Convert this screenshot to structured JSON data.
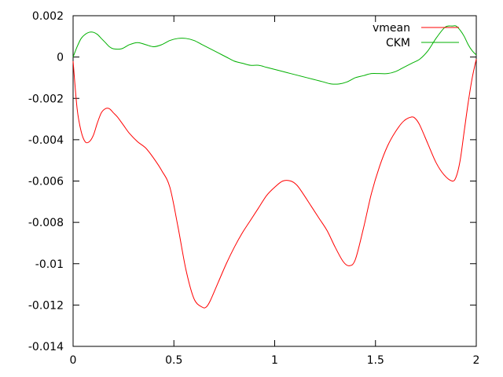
{
  "chart_data": {
    "type": "line",
    "title": "",
    "xlabel": "",
    "ylabel": "",
    "xlim": [
      0,
      2
    ],
    "ylim": [
      -0.014,
      0.002
    ],
    "grid": false,
    "legend_position": "top-right",
    "x_ticks": [
      {
        "value": 0,
        "label": "0"
      },
      {
        "value": 0.5,
        "label": "0.5"
      },
      {
        "value": 1,
        "label": "1"
      },
      {
        "value": 1.5,
        "label": "1.5"
      },
      {
        "value": 2,
        "label": "2"
      }
    ],
    "y_ticks": [
      {
        "value": 0.002,
        "label": "0.002"
      },
      {
        "value": 0,
        "label": "0"
      },
      {
        "value": -0.002,
        "label": "-0.002"
      },
      {
        "value": -0.004,
        "label": "-0.004"
      },
      {
        "value": -0.006,
        "label": "-0.006"
      },
      {
        "value": -0.008,
        "label": "-0.008"
      },
      {
        "value": -0.01,
        "label": "-0.01"
      },
      {
        "value": -0.012,
        "label": "-0.012"
      },
      {
        "value": -0.014,
        "label": "-0.014"
      }
    ],
    "series": [
      {
        "name": "vmean",
        "color": "#ff0000",
        "x": [
          0,
          0.02,
          0.04,
          0.06,
          0.08,
          0.1,
          0.12,
          0.14,
          0.16,
          0.18,
          0.2,
          0.22,
          0.25,
          0.28,
          0.32,
          0.36,
          0.4,
          0.44,
          0.48,
          0.52,
          0.56,
          0.6,
          0.64,
          0.66,
          0.68,
          0.72,
          0.76,
          0.8,
          0.84,
          0.88,
          0.92,
          0.96,
          1.0,
          1.04,
          1.08,
          1.11,
          1.14,
          1.18,
          1.22,
          1.26,
          1.3,
          1.34,
          1.37,
          1.4,
          1.44,
          1.48,
          1.52,
          1.56,
          1.6,
          1.64,
          1.68,
          1.7,
          1.72,
          1.76,
          1.8,
          1.84,
          1.88,
          1.9,
          1.92,
          1.94,
          1.96,
          1.98,
          2.0
        ],
        "values": [
          -0.0002,
          -0.0025,
          -0.0036,
          -0.0041,
          -0.0041,
          -0.0038,
          -0.0032,
          -0.0027,
          -0.0025,
          -0.0025,
          -0.0027,
          -0.0029,
          -0.0033,
          -0.0037,
          -0.0041,
          -0.0044,
          -0.0049,
          -0.0055,
          -0.0063,
          -0.0082,
          -0.0103,
          -0.0117,
          -0.0121,
          -0.0121,
          -0.0118,
          -0.0109,
          -0.01,
          -0.0092,
          -0.0085,
          -0.0079,
          -0.0073,
          -0.0067,
          -0.0063,
          -0.006,
          -0.006,
          -0.0062,
          -0.0066,
          -0.0072,
          -0.0078,
          -0.0084,
          -0.0092,
          -0.0099,
          -0.0101,
          -0.0098,
          -0.0083,
          -0.0066,
          -0.0053,
          -0.0043,
          -0.0036,
          -0.0031,
          -0.0029,
          -0.003,
          -0.0033,
          -0.0042,
          -0.0051,
          -0.0057,
          -0.006,
          -0.0058,
          -0.005,
          -0.0036,
          -0.0022,
          -0.001,
          -0.0001
        ]
      },
      {
        "name": "CKM",
        "color": "#00b000",
        "x": [
          0,
          0.02,
          0.04,
          0.06,
          0.08,
          0.1,
          0.12,
          0.14,
          0.16,
          0.18,
          0.2,
          0.24,
          0.28,
          0.32,
          0.36,
          0.4,
          0.44,
          0.48,
          0.52,
          0.56,
          0.6,
          0.64,
          0.68,
          0.72,
          0.76,
          0.8,
          0.84,
          0.88,
          0.92,
          0.96,
          1.0,
          1.04,
          1.08,
          1.12,
          1.16,
          1.2,
          1.24,
          1.28,
          1.32,
          1.36,
          1.4,
          1.44,
          1.48,
          1.52,
          1.56,
          1.6,
          1.64,
          1.68,
          1.72,
          1.76,
          1.8,
          1.84,
          1.86,
          1.88,
          1.9,
          1.92,
          1.94,
          1.96,
          1.98,
          2.0
        ],
        "values": [
          0.0,
          0.0005,
          0.0009,
          0.0011,
          0.0012,
          0.0012,
          0.0011,
          0.0009,
          0.0007,
          0.0005,
          0.0004,
          0.0004,
          0.0006,
          0.0007,
          0.0006,
          0.0005,
          0.0006,
          0.0008,
          0.0009,
          0.0009,
          0.0008,
          0.0006,
          0.0004,
          0.0002,
          0.0,
          -0.0002,
          -0.0003,
          -0.0004,
          -0.0004,
          -0.0005,
          -0.0006,
          -0.0007,
          -0.0008,
          -0.0009,
          -0.001,
          -0.0011,
          -0.0012,
          -0.0013,
          -0.0013,
          -0.0012,
          -0.001,
          -0.0009,
          -0.0008,
          -0.0008,
          -0.0008,
          -0.0007,
          -0.0005,
          -0.0003,
          -0.0001,
          0.0003,
          0.0009,
          0.0014,
          0.0015,
          0.0015,
          0.0015,
          0.0013,
          0.001,
          0.0006,
          0.0003,
          0.0001
        ]
      }
    ]
  }
}
